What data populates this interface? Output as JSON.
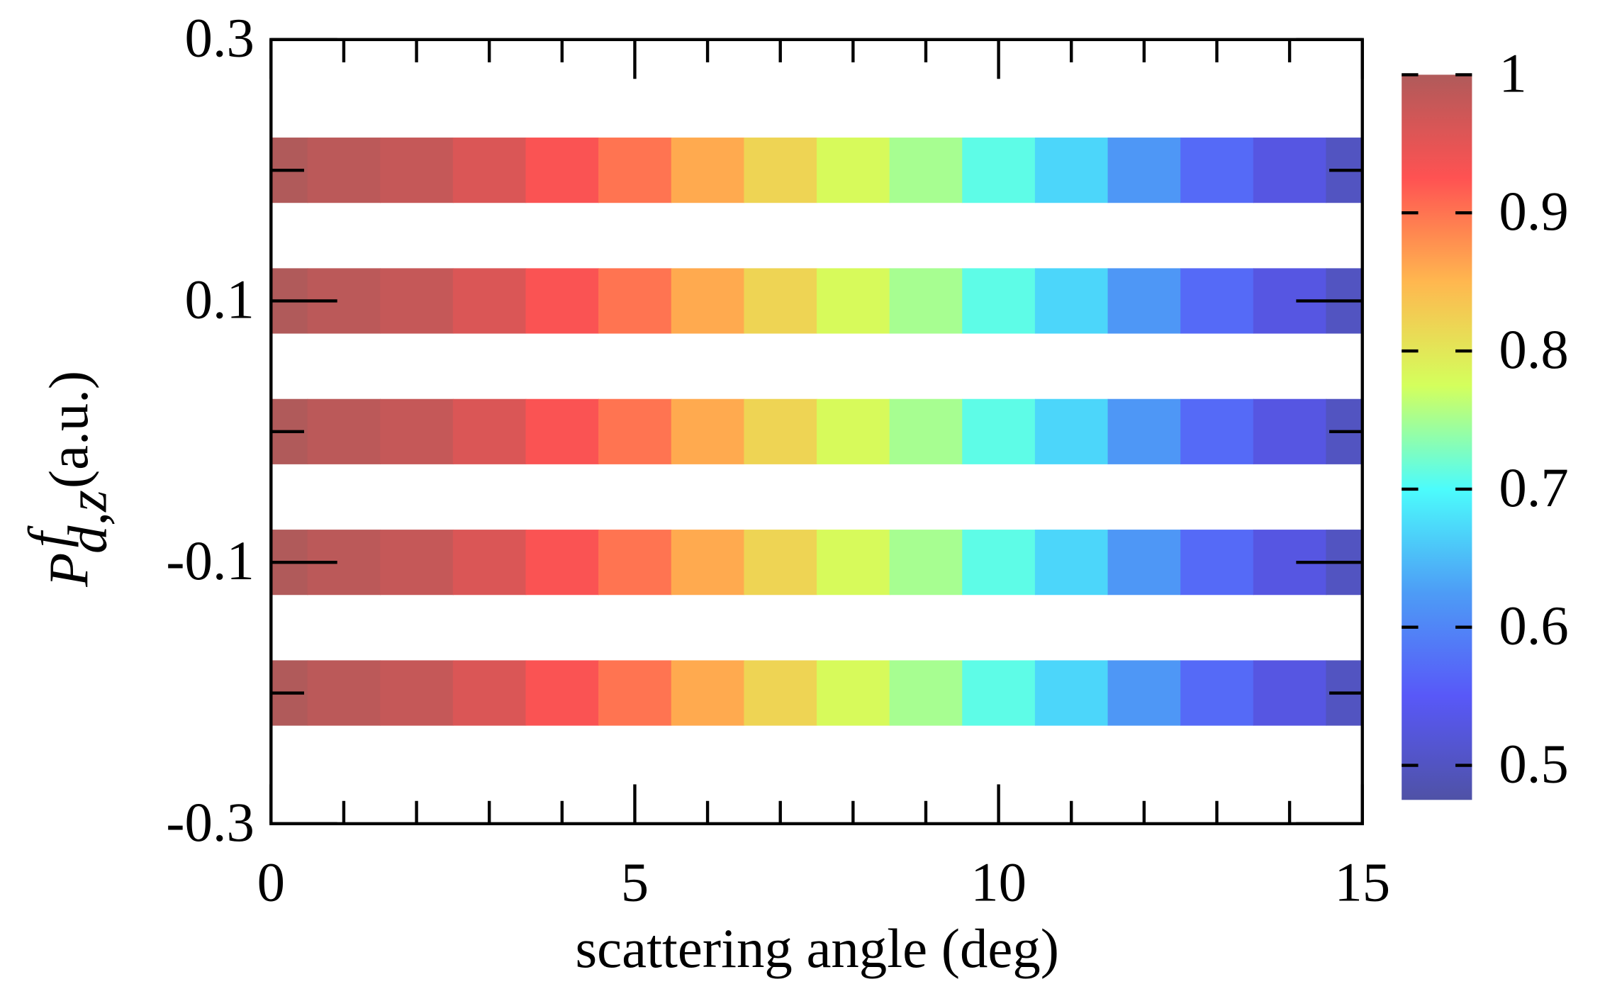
{
  "chart_data": {
    "type": "heatmap",
    "xlabel": "scattering angle (deg)",
    "ylabel": {
      "symbol": "P",
      "sup": "f",
      "sub": "d,z",
      "unit": "(a.u.)"
    },
    "x": [
      0,
      1,
      2,
      3,
      4,
      5,
      6,
      7,
      8,
      9,
      10,
      11,
      12,
      13,
      14,
      15
    ],
    "y": [
      0.2,
      0.1,
      0,
      -0.1,
      -0.2
    ],
    "band_height": 0.05,
    "rows": [
      [
        1.0,
        0.99,
        0.98,
        0.96,
        0.93,
        0.9,
        0.86,
        0.82,
        0.78,
        0.75,
        0.71,
        0.67,
        0.62,
        0.57,
        0.53,
        0.5
      ],
      [
        1.0,
        0.99,
        0.98,
        0.96,
        0.93,
        0.9,
        0.86,
        0.82,
        0.78,
        0.75,
        0.71,
        0.67,
        0.62,
        0.57,
        0.53,
        0.5
      ],
      [
        1.0,
        0.99,
        0.98,
        0.96,
        0.93,
        0.9,
        0.86,
        0.82,
        0.78,
        0.75,
        0.71,
        0.67,
        0.62,
        0.57,
        0.53,
        0.5
      ],
      [
        1.0,
        0.99,
        0.98,
        0.96,
        0.93,
        0.9,
        0.86,
        0.82,
        0.78,
        0.75,
        0.71,
        0.67,
        0.62,
        0.57,
        0.53,
        0.5
      ],
      [
        1.0,
        0.99,
        0.98,
        0.96,
        0.93,
        0.9,
        0.86,
        0.82,
        0.78,
        0.75,
        0.71,
        0.67,
        0.62,
        0.57,
        0.53,
        0.5
      ]
    ],
    "xlim": [
      0,
      15
    ],
    "xticks": [
      0,
      5,
      10,
      15
    ],
    "xminorticks": [
      1,
      2,
      3,
      4,
      6,
      7,
      8,
      9,
      11,
      12,
      13,
      14
    ],
    "ylim": [
      -0.3,
      0.3
    ],
    "yticks": [
      -0.3,
      -0.1,
      0.1,
      0.3
    ],
    "yminorticks": [
      -0.2,
      0,
      0.2
    ],
    "clim": [
      0.475,
      1
    ],
    "cticks": [
      0.5,
      0.6,
      0.7,
      0.8,
      0.9,
      1
    ],
    "colormap": [
      "#4f52a6",
      "#5858f8",
      "#4d9cf6",
      "#4cfcfc",
      "#d4ff5c",
      "#ffb74f",
      "#ff5252",
      "#b05a5a"
    ]
  }
}
